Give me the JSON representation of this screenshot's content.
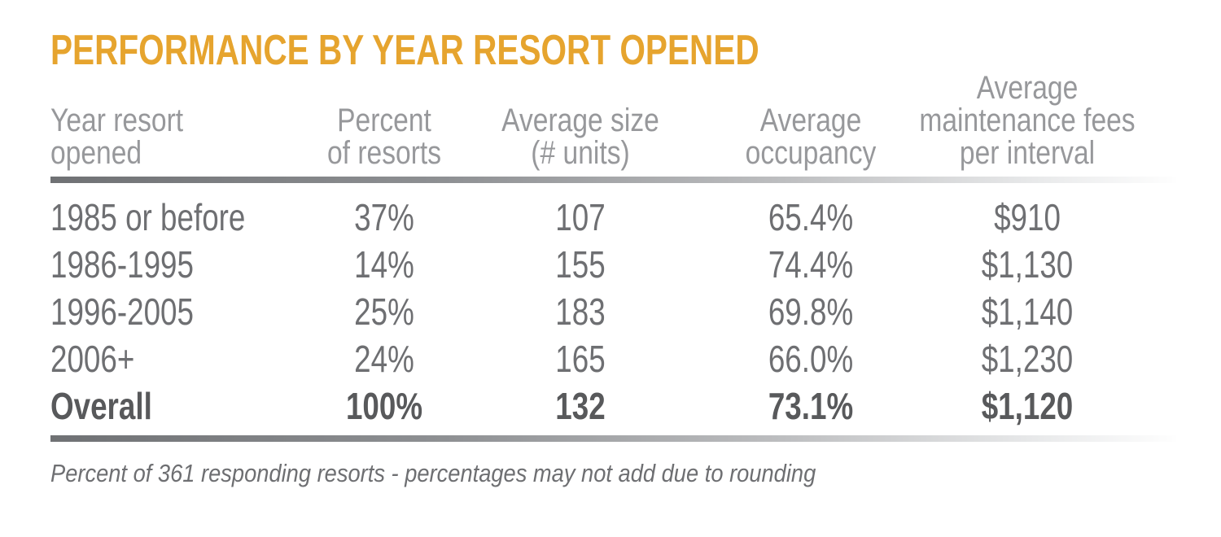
{
  "title": "PERFORMANCE BY YEAR RESORT OPENED",
  "footnote": "Percent of 361 responding resorts - percentages may not add due to rounding",
  "colors": {
    "accent_gold": "#E6A42E",
    "header_text": "#97989B",
    "body_text": "#6E6F72",
    "emphasis_text": "#58595B",
    "rule_dark": "#6F7174",
    "rule_light": "#FEFEFE"
  },
  "table": {
    "header": {
      "col1": [
        "Year resort",
        "opened"
      ],
      "col2": [
        "Percent",
        "of resorts"
      ],
      "col3": [
        "Average size",
        "(# units)"
      ],
      "col4": [
        "Average",
        "occupancy"
      ],
      "col5": [
        "Average",
        "maintenance fees",
        "per interval"
      ]
    },
    "rows": [
      {
        "cells": [
          "1985 or before",
          "37%",
          "107",
          "65.4%",
          "$910"
        ]
      },
      {
        "cells": [
          "1986-1995",
          "14%",
          "155",
          "74.4%",
          "$1,130"
        ]
      },
      {
        "cells": [
          "1996-2005",
          "25%",
          "183",
          "69.8%",
          "$1,140"
        ]
      },
      {
        "cells": [
          "2006+",
          "24%",
          "165",
          "66.0%",
          "$1,230"
        ]
      },
      {
        "cells": [
          "Overall",
          "100%",
          "132",
          "73.1%",
          "$1,120"
        ]
      }
    ]
  },
  "chart_data": {
    "type": "table",
    "title": "PERFORMANCE BY YEAR RESORT OPENED",
    "columns": [
      "Year resort opened",
      "Percent of resorts",
      "Average size (# units)",
      "Average occupancy",
      "Average maintenance fees per interval"
    ],
    "rows": [
      [
        "1985 or before",
        "37%",
        "107",
        "65.4%",
        "$910"
      ],
      [
        "1986-1995",
        "14%",
        "155",
        "74.4%",
        "$1,130"
      ],
      [
        "1996-2005",
        "25%",
        "183",
        "69.8%",
        "$1,140"
      ],
      [
        "2006+",
        "24%",
        "165",
        "66.0%",
        "$1,230"
      ],
      [
        "Overall",
        "100%",
        "132",
        "73.1%",
        "$1,120"
      ]
    ],
    "footnote": "Percent of 361 responding resorts - percentages may not add due to rounding"
  }
}
